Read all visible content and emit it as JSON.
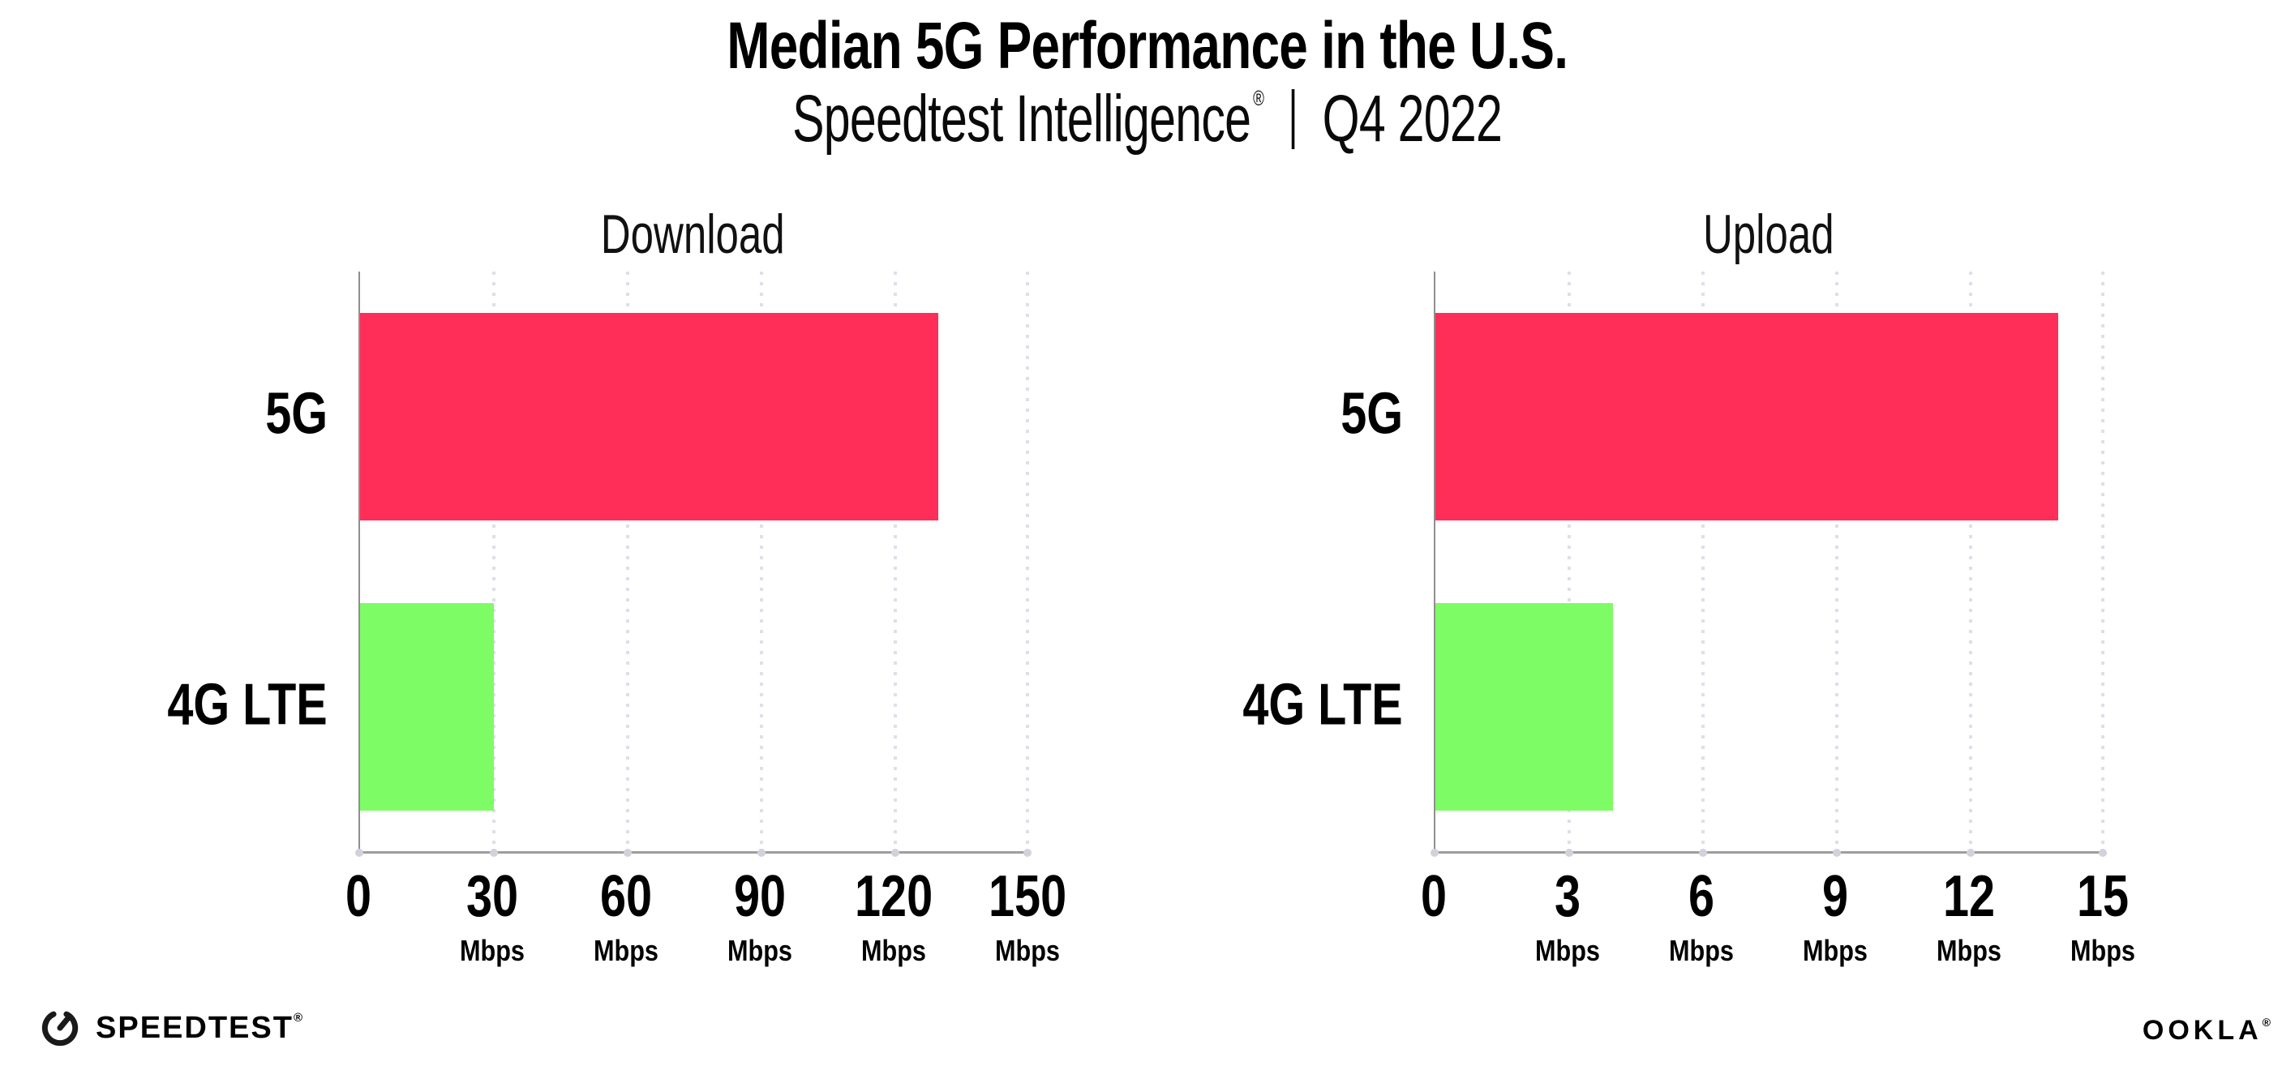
{
  "header": {
    "title": "Median 5G Performance in the U.S.",
    "subtitle": {
      "brand": "Speedtest Intelligence",
      "registered_mark": "®",
      "separator": "|",
      "period": "Q4 2022"
    }
  },
  "chart_data": [
    {
      "type": "bar",
      "orientation": "horizontal",
      "title": "Download",
      "categories": [
        "5G",
        "4G LTE"
      ],
      "values": [
        130,
        30
      ],
      "unit": "Mbps",
      "xticks": [
        0,
        30,
        60,
        90,
        120,
        150
      ],
      "xlim": [
        0,
        150
      ],
      "bar_colors": [
        "#ff2e58",
        "#7efc65"
      ],
      "grid": "vertical-dotted",
      "legend": "none"
    },
    {
      "type": "bar",
      "orientation": "horizontal",
      "title": "Upload",
      "categories": [
        "5G",
        "4G LTE"
      ],
      "values": [
        14,
        4
      ],
      "unit": "Mbps",
      "xticks": [
        0,
        3,
        6,
        9,
        12,
        15
      ],
      "xlim": [
        0,
        15
      ],
      "bar_colors": [
        "#ff2e58",
        "#7efc65"
      ],
      "grid": "vertical-dotted",
      "legend": "none"
    }
  ],
  "footer": {
    "speedtest_logo_text": "SPEEDTEST",
    "speedtest_mark": "®",
    "ookla_logo_text": "OOKLA",
    "ookla_mark": "®"
  },
  "colors": {
    "bar_5g": "#ff2e58",
    "bar_4g_lte": "#7efc65",
    "background": "#ffffff",
    "text": "#000000"
  }
}
